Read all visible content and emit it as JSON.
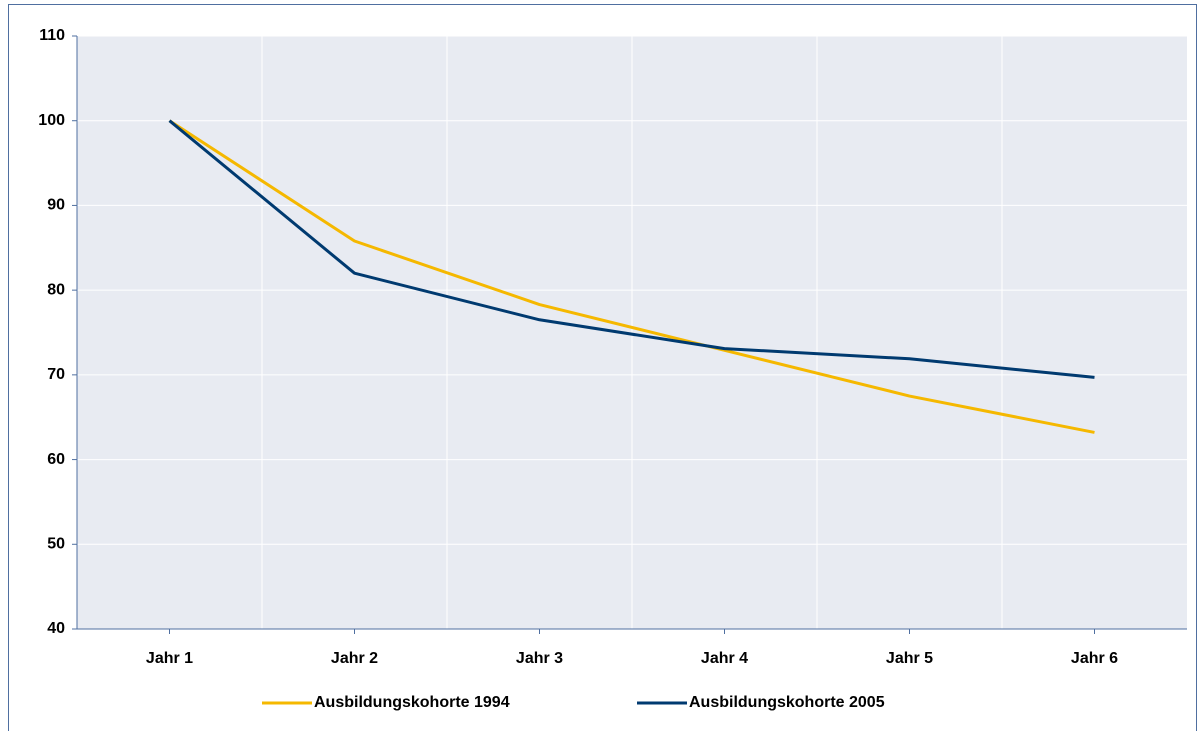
{
  "chart_data": {
    "type": "line",
    "categories": [
      "Jahr 1",
      "Jahr 2",
      "Jahr 3",
      "Jahr 4",
      "Jahr 5",
      "Jahr 6"
    ],
    "series": [
      {
        "name": "Ausbildungskohorte 1994",
        "color": "#f5b800",
        "values": [
          100,
          85.8,
          78.3,
          72.9,
          67.5,
          63.2
        ]
      },
      {
        "name": "Ausbildungskohorte 2005",
        "color": "#003a70",
        "values": [
          100,
          82,
          76.5,
          73.1,
          71.9,
          69.7
        ]
      }
    ],
    "ylim": [
      40,
      110
    ],
    "yticks": [
      40,
      50,
      60,
      70,
      80,
      90,
      100,
      110
    ],
    "grid": true,
    "legend": "bottom"
  }
}
